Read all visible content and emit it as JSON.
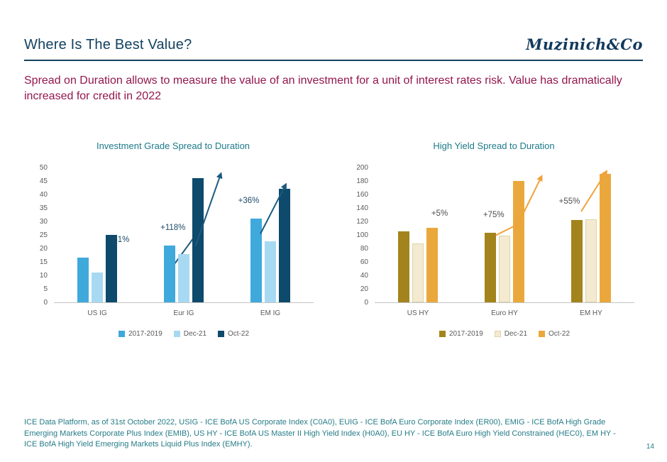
{
  "header": {
    "title": "Where Is The Best Value?",
    "logo": "Muzinich&Co"
  },
  "subtitle": "Spread on Duration allows to measure the value of an investment for a unit of interest rates risk. Value has dramatically increased for credit in 2022",
  "colors": {
    "brand_navy": "#14425f",
    "teal_text": "#1d7a8a",
    "subtitle_maroon": "#93164d"
  },
  "chart_data": [
    {
      "type": "bar",
      "title": "Investment Grade Spread to Duration",
      "categories": [
        "US IG",
        "Eur IG",
        "EM IG"
      ],
      "series": [
        {
          "name": "2017-2019",
          "color": "#3fa9dc",
          "values": [
            16.5,
            21,
            31
          ]
        },
        {
          "name": "Dec-21",
          "color": "#a8d9f2",
          "values": [
            11,
            18,
            22.5
          ]
        },
        {
          "name": "Oct-22",
          "color": "#0e4a6b",
          "values": [
            25,
            46,
            42
          ]
        }
      ],
      "ylim": [
        0,
        50
      ],
      "ytick_step": 5,
      "annotations": [
        "+51%",
        "+118%",
        "+36%"
      ],
      "annotation_color": "#1c4a66",
      "arrow_color": "#1c5a80",
      "legend_position": "bottom",
      "grid": false
    },
    {
      "type": "bar",
      "title": "High Yield Spread to Duration",
      "categories": [
        "US HY",
        "Euro HY",
        "EM HY"
      ],
      "series": [
        {
          "name": "2017-2019",
          "color": "#a3841c",
          "values": [
            105,
            103,
            122
          ]
        },
        {
          "name": "Dec-21",
          "color": "#f3ead0",
          "border": "#e0d3aa",
          "values": [
            87,
            99,
            123
          ]
        },
        {
          "name": "Oct-22",
          "color": "#eaa83c",
          "values": [
            110,
            180,
            190
          ]
        }
      ],
      "ylim": [
        0,
        200
      ],
      "ytick_step": 20,
      "annotations": [
        "+5%",
        "+75%",
        "+55%"
      ],
      "annotation_color": "#4d4d4d",
      "arrow_color": "#f0a23a",
      "legend_position": "bottom",
      "grid": false
    }
  ],
  "footer": {
    "note": "ICE Data Platform, as of 31st October 2022, USIG - ICE BofA US Corporate Index (C0A0), EUIG - ICE BofA Euro Corporate Index (ER00), EMIG - ICE BofA High Grade Emerging Markets Corporate Plus Index (EMIB), US HY - ICE BofA US Master II High Yield Index (H0A0), EU HY - ICE BofA Euro High Yield Constrained (HEC0), EM HY - ICE BofA High Yield Emerging Markets Liquid Plus Index (EMHY).",
    "page_number": "14"
  }
}
